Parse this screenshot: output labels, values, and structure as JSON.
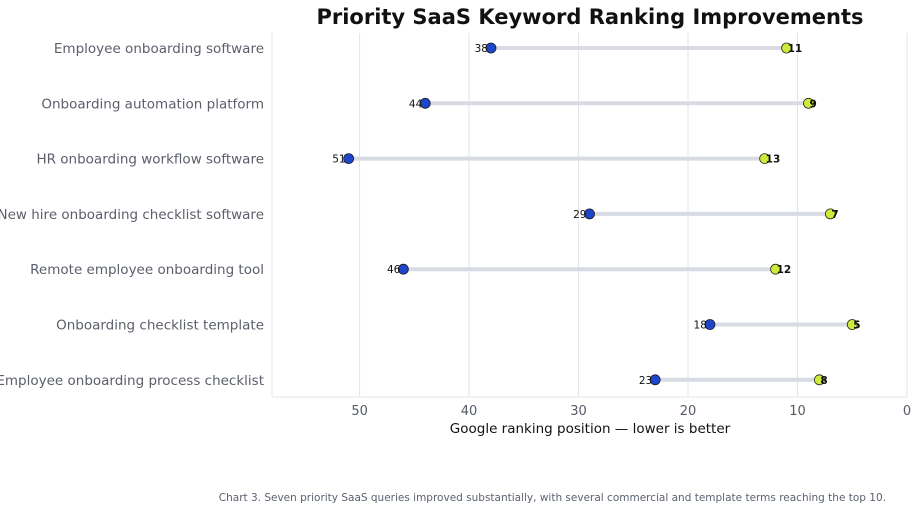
{
  "colors": {
    "before": "#1f45c9",
    "after": "#cfea3a",
    "connector": "#d8dbe3",
    "grid": "#e3e4e8"
  },
  "chart_data": {
    "type": "dumbbell",
    "title": "Priority SaaS Keyword Ranking Improvements",
    "xlabel": "Google ranking position — lower is better",
    "ylabel": "",
    "xlim": [
      58,
      0
    ],
    "x_ticks": [
      50,
      40,
      30,
      20,
      10,
      0
    ],
    "x_axis_inverted": true,
    "grid": "vertical",
    "legend": "none",
    "categories": [
      "Employee onboarding software",
      "Onboarding automation platform",
      "HR onboarding workflow software",
      "New hire onboarding checklist software",
      "Remote employee onboarding tool",
      "Onboarding checklist template",
      "Employee onboarding process checklist"
    ],
    "series": [
      {
        "values": [
          38,
          44,
          51,
          29,
          46,
          18,
          23
        ]
      },
      {
        "values": [
          11,
          9,
          13,
          7,
          12,
          5,
          8
        ]
      }
    ]
  },
  "caption": "Chart 3. Seven priority SaaS queries improved substantially, with several commercial and template terms reaching the top 10."
}
